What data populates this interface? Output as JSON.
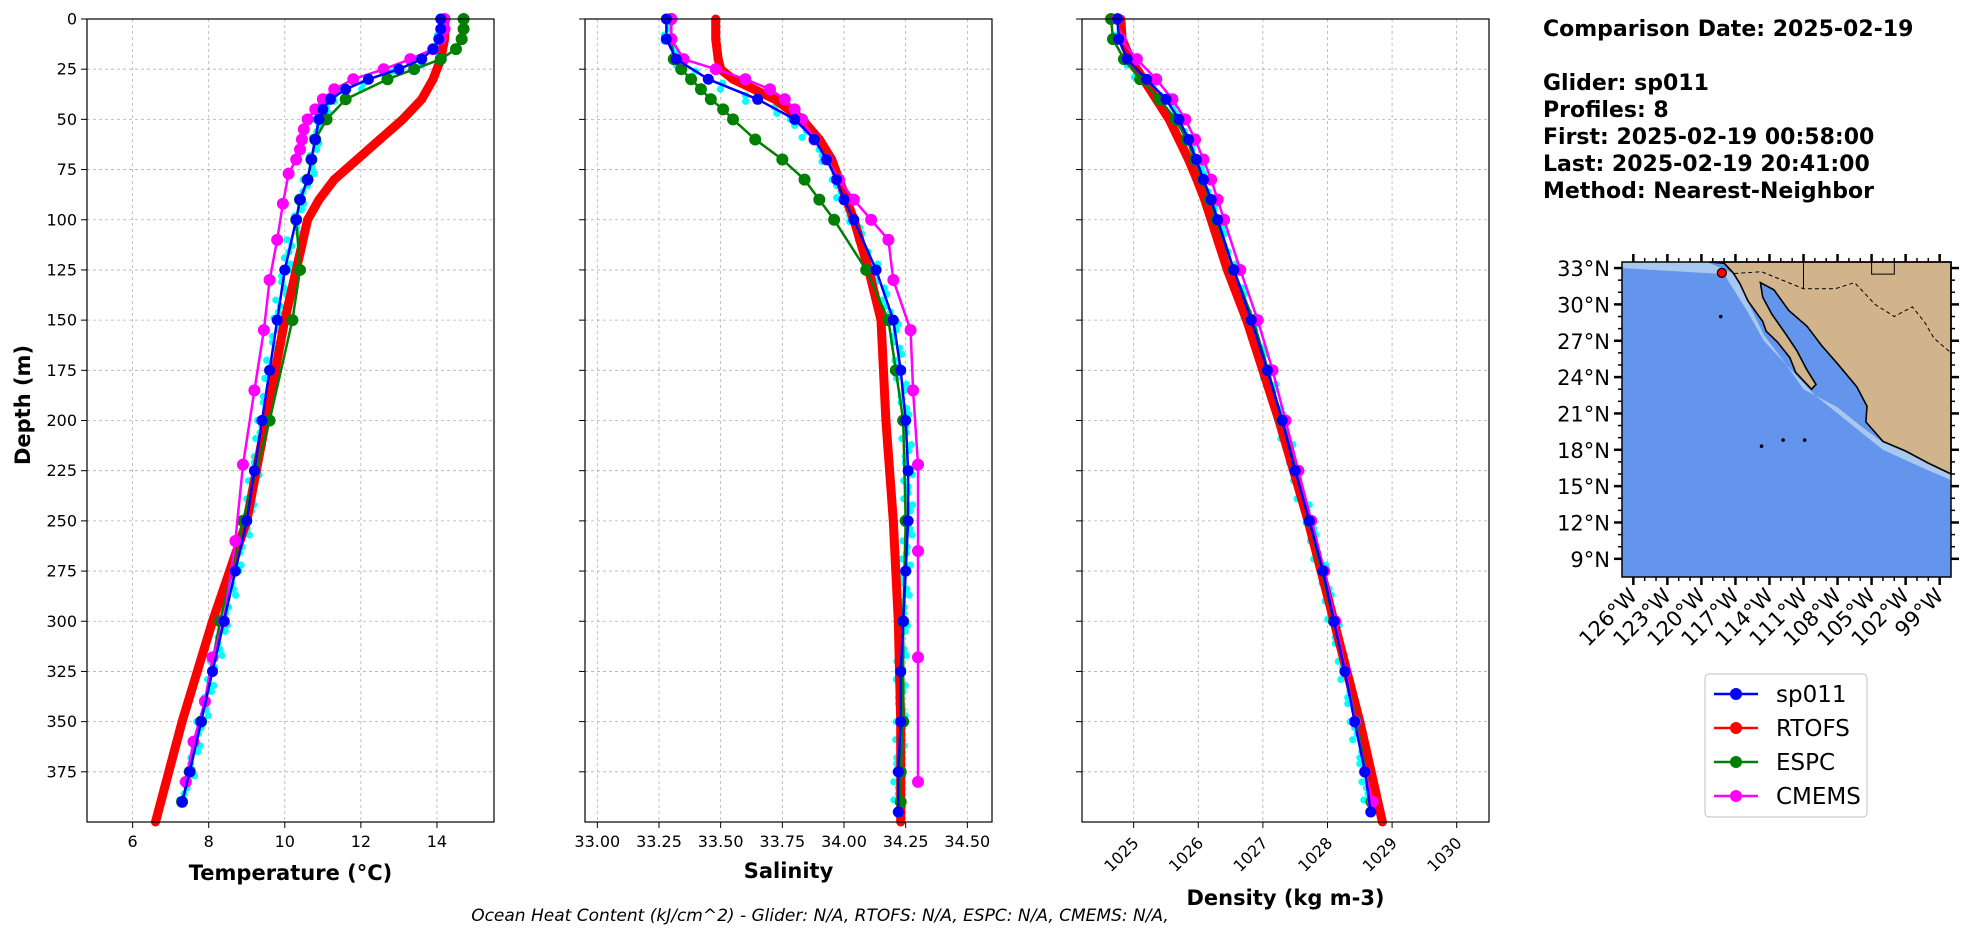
{
  "info": {
    "lines": [
      "Comparison Date: 2025-02-19",
      "",
      "Glider: sp011",
      "Profiles: 8",
      "First: 2025-02-19 00:58:00",
      "Last: 2025-02-19 20:41:00",
      "Method: Nearest-Neighbor"
    ]
  },
  "footer": "Ocean Heat Content (kJ/cm^2) - Glider: N/A,  RTOFS: N/A,  ESPC: N/A,  CMEMS: N/A,",
  "colors": {
    "sp011": "#0000ff",
    "RTOFS": "#ff0000",
    "ESPC": "#008000",
    "CMEMS": "#ff00ff",
    "glider_points": "#00ffff",
    "ocean": "#6495ed",
    "land": "#d2b48c",
    "shelf": "#a8c8f0",
    "marker": "#ff0000"
  },
  "map": {
    "lat_labels": [
      "33°N",
      "30°N",
      "27°N",
      "24°N",
      "21°N",
      "18°N",
      "15°N",
      "12°N",
      "9°N"
    ],
    "lon_labels": [
      "126°W",
      "123°W",
      "120°W",
      "117°W",
      "114°W",
      "111°W",
      "108°W",
      "105°W",
      "102°W",
      "99°W"
    ],
    "lat_range": [
      7.5,
      33.5
    ],
    "lon_range": [
      -127,
      -98
    ],
    "glider_location": {
      "lon": -118.2,
      "lat": 32.6
    }
  },
  "legend": [
    {
      "name": "sp011",
      "color": "#0000ff"
    },
    {
      "name": "RTOFS",
      "color": "#ff0000"
    },
    {
      "name": "ESPC",
      "color": "#008000"
    },
    {
      "name": "CMEMS",
      "color": "#ff00ff"
    }
  ],
  "chart_data": [
    {
      "type": "line",
      "xlabel": "Temperature (°C)",
      "ylabel": "Depth (m)",
      "xlim": [
        4.8,
        15.5
      ],
      "ylim": [
        400,
        0
      ],
      "xticks": [
        "6",
        "8",
        "10",
        "12",
        "14"
      ],
      "yticks": [
        "0",
        "25",
        "50",
        "75",
        "100",
        "125",
        "150",
        "175",
        "200",
        "225",
        "250",
        "275",
        "300",
        "325",
        "350",
        "375"
      ],
      "grid": true,
      "series": [
        {
          "name": "sp011",
          "depth": [
            0,
            5,
            10,
            15,
            20,
            25,
            30,
            35,
            40,
            45,
            50,
            60,
            70,
            80,
            90,
            100,
            125,
            150,
            175,
            200,
            225,
            250,
            275,
            300,
            325,
            350,
            375,
            390
          ],
          "values": [
            14.1,
            14.1,
            14.05,
            13.9,
            13.6,
            13.0,
            12.2,
            11.6,
            11.2,
            11.0,
            10.9,
            10.8,
            10.7,
            10.6,
            10.4,
            10.3,
            10.0,
            9.8,
            9.6,
            9.4,
            9.2,
            9.0,
            8.7,
            8.4,
            8.1,
            7.8,
            7.5,
            7.3
          ]
        },
        {
          "name": "RTOFS",
          "depth": [
            0,
            10,
            20,
            30,
            40,
            50,
            60,
            70,
            80,
            90,
            100,
            125,
            150,
            200,
            250,
            300,
            350,
            400
          ],
          "values": [
            14.2,
            14.2,
            14.1,
            13.9,
            13.6,
            13.1,
            12.5,
            11.9,
            11.3,
            10.9,
            10.6,
            10.3,
            10.0,
            9.5,
            9.0,
            8.1,
            7.3,
            6.6
          ]
        },
        {
          "name": "ESPC",
          "depth": [
            0,
            5,
            10,
            15,
            20,
            25,
            30,
            40,
            50,
            60,
            70,
            80,
            90,
            100,
            125,
            150,
            200,
            250,
            300,
            350,
            375,
            390
          ],
          "values": [
            14.7,
            14.7,
            14.65,
            14.5,
            14.1,
            13.4,
            12.7,
            11.6,
            11.1,
            10.8,
            10.7,
            10.6,
            10.4,
            10.3,
            10.4,
            10.2,
            9.6,
            8.9,
            8.3,
            7.8,
            7.5,
            7.3
          ]
        },
        {
          "name": "CMEMS",
          "depth": [
            0,
            5,
            10,
            15,
            20,
            25,
            30,
            35,
            40,
            45,
            50,
            55,
            60,
            65,
            70,
            77,
            92,
            110,
            130,
            155,
            185,
            222,
            260,
            300,
            318,
            340,
            360,
            380
          ],
          "values": [
            14.2,
            14.2,
            14.1,
            13.9,
            13.3,
            12.6,
            11.8,
            11.3,
            11.0,
            10.8,
            10.6,
            10.5,
            10.45,
            10.4,
            10.3,
            10.1,
            9.95,
            9.8,
            9.6,
            9.45,
            9.2,
            8.9,
            8.7,
            8.4,
            8.1,
            7.9,
            7.6,
            7.4
          ]
        }
      ]
    },
    {
      "type": "line",
      "xlabel": "Salinity",
      "xlim": [
        32.95,
        34.6
      ],
      "ylim": [
        400,
        0
      ],
      "xticks": [
        "33.00",
        "33.25",
        "33.50",
        "33.75",
        "34.00",
        "34.25",
        "34.50"
      ],
      "grid": true,
      "series": [
        {
          "name": "sp011",
          "depth": [
            0,
            10,
            20,
            30,
            40,
            50,
            60,
            70,
            80,
            90,
            100,
            125,
            150,
            175,
            200,
            225,
            250,
            275,
            300,
            325,
            350,
            375,
            395
          ],
          "values": [
            33.28,
            33.28,
            33.32,
            33.45,
            33.65,
            33.8,
            33.88,
            33.93,
            33.97,
            34.0,
            34.04,
            34.13,
            34.2,
            34.23,
            34.25,
            34.26,
            34.26,
            34.25,
            34.24,
            34.23,
            34.23,
            34.22,
            34.22
          ]
        },
        {
          "name": "RTOFS",
          "depth": [
            0,
            10,
            20,
            25,
            30,
            40,
            50,
            60,
            70,
            80,
            90,
            100,
            125,
            150,
            200,
            250,
            300,
            350,
            400
          ],
          "values": [
            33.48,
            33.48,
            33.49,
            33.5,
            33.55,
            33.72,
            33.83,
            33.9,
            33.95,
            33.98,
            34.01,
            34.04,
            34.1,
            34.15,
            34.17,
            34.2,
            34.22,
            34.23,
            34.23
          ]
        },
        {
          "name": "ESPC",
          "depth": [
            0,
            10,
            20,
            25,
            30,
            35,
            40,
            45,
            50,
            60,
            70,
            80,
            90,
            100,
            125,
            150,
            175,
            200,
            250,
            300,
            350,
            375,
            390
          ],
          "values": [
            33.3,
            33.3,
            33.31,
            33.34,
            33.38,
            33.42,
            33.46,
            33.51,
            33.55,
            33.64,
            33.75,
            33.84,
            33.9,
            33.96,
            34.09,
            34.18,
            34.21,
            34.24,
            34.25,
            34.24,
            34.24,
            34.23,
            34.23
          ]
        },
        {
          "name": "CMEMS",
          "depth": [
            0,
            10,
            20,
            25,
            30,
            35,
            40,
            45,
            50,
            60,
            70,
            80,
            90,
            100,
            110,
            130,
            155,
            185,
            222,
            265,
            318,
            380
          ],
          "values": [
            33.3,
            33.3,
            33.35,
            33.48,
            33.6,
            33.7,
            33.76,
            33.8,
            33.83,
            33.88,
            33.93,
            33.98,
            34.04,
            34.11,
            34.18,
            34.2,
            34.27,
            34.28,
            34.3,
            34.3,
            34.3,
            34.3
          ]
        }
      ]
    },
    {
      "type": "line",
      "xlabel": "Density (kg m-3)",
      "xlim": [
        1024.2,
        1030.5
      ],
      "ylim": [
        400,
        0
      ],
      "xticks": [
        "1025",
        "1026",
        "1027",
        "1028",
        "1029",
        "1030"
      ],
      "grid": true,
      "series": [
        {
          "name": "sp011",
          "depth": [
            0,
            10,
            20,
            30,
            40,
            50,
            60,
            70,
            80,
            90,
            100,
            125,
            150,
            175,
            200,
            225,
            250,
            275,
            300,
            325,
            350,
            375,
            395
          ],
          "values": [
            1024.75,
            1024.77,
            1024.9,
            1025.2,
            1025.5,
            1025.7,
            1025.85,
            1025.97,
            1026.08,
            1026.2,
            1026.3,
            1026.55,
            1026.82,
            1027.07,
            1027.3,
            1027.5,
            1027.72,
            1027.93,
            1028.1,
            1028.27,
            1028.42,
            1028.58,
            1028.67
          ]
        },
        {
          "name": "RTOFS",
          "depth": [
            0,
            10,
            20,
            30,
            40,
            50,
            60,
            70,
            80,
            90,
            100,
            125,
            150,
            200,
            250,
            300,
            350,
            400
          ],
          "values": [
            1024.8,
            1024.82,
            1024.95,
            1025.15,
            1025.35,
            1025.55,
            1025.7,
            1025.85,
            1025.98,
            1026.1,
            1026.2,
            1026.45,
            1026.75,
            1027.25,
            1027.7,
            1028.1,
            1028.5,
            1028.85
          ]
        },
        {
          "name": "ESPC",
          "depth": [
            0,
            10,
            20,
            30,
            40,
            50,
            60,
            70,
            80,
            90,
            100,
            125,
            150,
            175,
            200,
            250,
            300,
            350,
            390
          ],
          "values": [
            1024.65,
            1024.68,
            1024.85,
            1025.1,
            1025.4,
            1025.65,
            1025.82,
            1025.95,
            1026.07,
            1026.18,
            1026.28,
            1026.55,
            1026.85,
            1027.08,
            1027.3,
            1027.72,
            1028.1,
            1028.45,
            1028.68
          ]
        },
        {
          "name": "CMEMS",
          "depth": [
            0,
            10,
            20,
            30,
            40,
            50,
            60,
            70,
            80,
            90,
            100,
            125,
            150,
            175,
            200,
            225,
            250,
            275,
            300,
            325,
            350,
            375,
            390
          ],
          "values": [
            1024.75,
            1024.8,
            1025.05,
            1025.35,
            1025.6,
            1025.8,
            1025.95,
            1026.08,
            1026.2,
            1026.3,
            1026.4,
            1026.65,
            1026.92,
            1027.15,
            1027.35,
            1027.55,
            1027.75,
            1027.95,
            1028.12,
            1028.28,
            1028.43,
            1028.58,
            1028.7
          ]
        }
      ]
    }
  ]
}
